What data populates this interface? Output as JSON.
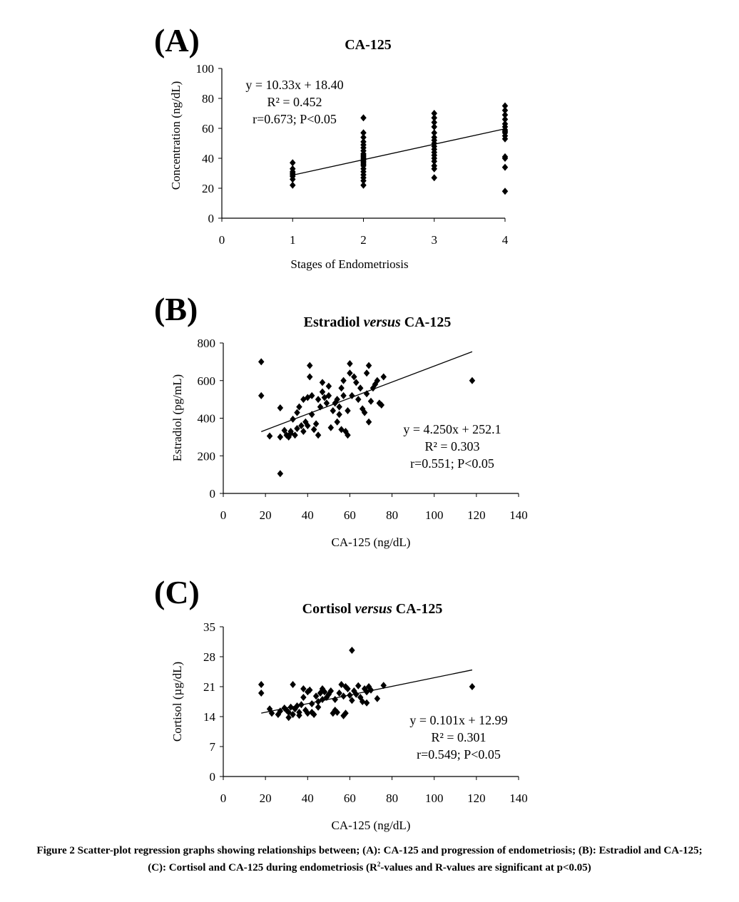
{
  "chart_data": [
    {
      "type": "scatter",
      "panel": "(A)",
      "title": "CA-125",
      "xlabel": "Stages of Endometriosis",
      "ylabel": "Concentration (ng/dL)",
      "xlim": [
        0,
        4
      ],
      "ylim": [
        0,
        100
      ],
      "xticks": [
        0,
        1,
        2,
        3,
        4
      ],
      "yticks": [
        0,
        20,
        40,
        60,
        80,
        100
      ],
      "trendline": {
        "slope": 10.33,
        "intercept": 18.4,
        "x_range": [
          1,
          4
        ]
      },
      "annotation": [
        "y = 10.33x + 18.40",
        "R² = 0.452",
        "r=0.673; P<0.05"
      ],
      "points": [
        [
          1,
          37
        ],
        [
          1,
          33
        ],
        [
          1,
          31
        ],
        [
          1,
          30
        ],
        [
          1,
          29
        ],
        [
          1,
          28
        ],
        [
          1,
          26
        ],
        [
          1,
          22
        ],
        [
          2,
          67
        ],
        [
          2,
          57
        ],
        [
          2,
          54
        ],
        [
          2,
          51
        ],
        [
          2,
          49
        ],
        [
          2,
          47
        ],
        [
          2,
          45
        ],
        [
          2,
          43
        ],
        [
          2,
          42
        ],
        [
          2,
          41
        ],
        [
          2,
          40
        ],
        [
          2,
          39
        ],
        [
          2,
          38
        ],
        [
          2,
          37
        ],
        [
          2,
          36
        ],
        [
          2,
          35
        ],
        [
          2,
          33
        ],
        [
          2,
          31
        ],
        [
          2,
          29
        ],
        [
          2,
          27
        ],
        [
          2,
          25
        ],
        [
          2,
          22
        ],
        [
          3,
          70
        ],
        [
          3,
          67
        ],
        [
          3,
          64
        ],
        [
          3,
          61
        ],
        [
          3,
          57
        ],
        [
          3,
          54
        ],
        [
          3,
          52
        ],
        [
          3,
          50
        ],
        [
          3,
          48
        ],
        [
          3,
          46
        ],
        [
          3,
          44
        ],
        [
          3,
          42
        ],
        [
          3,
          40
        ],
        [
          3,
          38
        ],
        [
          3,
          35
        ],
        [
          3,
          33
        ],
        [
          3,
          27
        ],
        [
          4,
          75
        ],
        [
          4,
          72
        ],
        [
          4,
          69
        ],
        [
          4,
          66
        ],
        [
          4,
          63
        ],
        [
          4,
          61
        ],
        [
          4,
          59
        ],
        [
          4,
          58
        ],
        [
          4,
          57
        ],
        [
          4,
          55
        ],
        [
          4,
          53
        ],
        [
          4,
          41
        ],
        [
          4,
          40
        ],
        [
          4,
          34
        ],
        [
          4,
          18
        ]
      ]
    },
    {
      "type": "scatter",
      "panel": "(B)",
      "title": "Estradiol",
      "title_italic": "versus",
      "title_tail": "CA-125",
      "xlabel": "CA-125 (ng/dL)",
      "ylabel": "Estradiol (pg/mL)",
      "xlim": [
        0,
        140
      ],
      "ylim": [
        0,
        800
      ],
      "xticks": [
        0,
        20,
        40,
        60,
        80,
        100,
        120,
        140
      ],
      "yticks": [
        0,
        200,
        400,
        600,
        800
      ],
      "trendline": {
        "slope": 4.25,
        "intercept": 252.1,
        "x_range": [
          18,
          118
        ]
      },
      "annotation": [
        "y = 4.250x + 252.1",
        "R² = 0.303",
        "r=0.551; P<0.05"
      ],
      "points": [
        [
          18,
          700
        ],
        [
          18,
          520
        ],
        [
          22,
          305
        ],
        [
          27,
          105
        ],
        [
          27,
          300
        ],
        [
          27,
          455
        ],
        [
          29,
          335
        ],
        [
          30,
          310
        ],
        [
          31,
          300
        ],
        [
          32,
          320
        ],
        [
          32,
          330
        ],
        [
          33,
          395
        ],
        [
          34,
          310
        ],
        [
          35,
          345
        ],
        [
          35,
          430
        ],
        [
          36,
          460
        ],
        [
          37,
          360
        ],
        [
          38,
          330
        ],
        [
          38,
          500
        ],
        [
          39,
          380
        ],
        [
          40,
          510
        ],
        [
          40,
          360
        ],
        [
          41,
          680
        ],
        [
          41,
          620
        ],
        [
          42,
          520
        ],
        [
          42,
          420
        ],
        [
          43,
          340
        ],
        [
          44,
          370
        ],
        [
          45,
          310
        ],
        [
          45,
          500
        ],
        [
          46,
          460
        ],
        [
          47,
          590
        ],
        [
          47,
          540
        ],
        [
          48,
          510
        ],
        [
          49,
          480
        ],
        [
          50,
          520
        ],
        [
          50,
          570
        ],
        [
          51,
          350
        ],
        [
          52,
          440
        ],
        [
          53,
          480
        ],
        [
          54,
          500
        ],
        [
          54,
          380
        ],
        [
          55,
          420
        ],
        [
          55,
          460
        ],
        [
          56,
          340
        ],
        [
          56,
          560
        ],
        [
          57,
          520
        ],
        [
          57,
          600
        ],
        [
          58,
          330
        ],
        [
          59,
          310
        ],
        [
          59,
          440
        ],
        [
          60,
          640
        ],
        [
          60,
          690
        ],
        [
          61,
          520
        ],
        [
          62,
          620
        ],
        [
          63,
          590
        ],
        [
          64,
          500
        ],
        [
          65,
          560
        ],
        [
          66,
          450
        ],
        [
          67,
          430
        ],
        [
          68,
          530
        ],
        [
          68,
          640
        ],
        [
          69,
          380
        ],
        [
          69,
          680
        ],
        [
          70,
          490
        ],
        [
          71,
          560
        ],
        [
          72,
          580
        ],
        [
          73,
          600
        ],
        [
          74,
          480
        ],
        [
          75,
          470
        ],
        [
          76,
          620
        ],
        [
          118,
          600
        ]
      ]
    },
    {
      "type": "scatter",
      "panel": "(C)",
      "title": "Cortisol",
      "title_italic": "versus",
      "title_tail": "CA-125",
      "xlabel": "CA-125 (ng/dL)",
      "ylabel": "Cortisol (µg/dL)",
      "xlim": [
        0,
        140
      ],
      "ylim": [
        0,
        35
      ],
      "xticks": [
        0,
        20,
        40,
        60,
        80,
        100,
        120,
        140
      ],
      "yticks": [
        0,
        7,
        14,
        21,
        28,
        35
      ],
      "trendline": {
        "slope": 0.101,
        "intercept": 12.99,
        "x_range": [
          18,
          118
        ]
      },
      "annotation": [
        "y = 0.101x + 12.99",
        "R² = 0.301",
        "r=0.549; P<0.05"
      ],
      "points": [
        [
          18,
          21.5
        ],
        [
          18,
          19.5
        ],
        [
          22,
          15.8
        ],
        [
          23,
          14.8
        ],
        [
          26,
          14.5
        ],
        [
          27,
          15.3
        ],
        [
          29,
          16
        ],
        [
          30,
          15.5
        ],
        [
          31,
          13.8
        ],
        [
          31,
          15
        ],
        [
          32,
          16.2
        ],
        [
          33,
          14.5
        ],
        [
          33,
          21.5
        ],
        [
          34,
          15.8
        ],
        [
          35,
          16.5
        ],
        [
          36,
          15
        ],
        [
          36,
          14.3
        ],
        [
          37,
          16.8
        ],
        [
          38,
          18.5
        ],
        [
          38,
          20.5
        ],
        [
          39,
          15.5
        ],
        [
          40,
          19.8
        ],
        [
          40,
          14.8
        ],
        [
          41,
          20.2
        ],
        [
          42,
          15
        ],
        [
          42,
          17
        ],
        [
          43,
          14.5
        ],
        [
          44,
          18.8
        ],
        [
          45,
          17.5
        ],
        [
          45,
          16.2
        ],
        [
          46,
          19.5
        ],
        [
          47,
          18
        ],
        [
          47,
          20.5
        ],
        [
          48,
          19.8
        ],
        [
          49,
          18.5
        ],
        [
          50,
          19.2
        ],
        [
          51,
          20
        ],
        [
          52,
          14.8
        ],
        [
          53,
          15.5
        ],
        [
          53,
          18
        ],
        [
          54,
          15
        ],
        [
          55,
          19.5
        ],
        [
          56,
          21.5
        ],
        [
          57,
          14.2
        ],
        [
          57,
          18.8
        ],
        [
          58,
          21
        ],
        [
          58,
          14.8
        ],
        [
          59,
          20.5
        ],
        [
          60,
          19
        ],
        [
          61,
          17.8
        ],
        [
          61,
          29.5
        ],
        [
          62,
          20
        ],
        [
          63,
          19.2
        ],
        [
          64,
          21.2
        ],
        [
          65,
          18.5
        ],
        [
          66,
          17.5
        ],
        [
          67,
          20.5
        ],
        [
          68,
          19.8
        ],
        [
          68,
          17.2
        ],
        [
          69,
          21
        ],
        [
          70,
          20.2
        ],
        [
          73,
          18.2
        ],
        [
          76,
          21.3
        ],
        [
          118,
          21
        ]
      ]
    }
  ],
  "caption": {
    "lead": "Figure 2 Scatter-plot regression graphs showing relationships between; (A): CA-125 and progression of endometriosis; (B): Estradiol and CA-125; (C): Cortisol and CA-125 during endometriosis (R",
    "sup": "2",
    "tail": "-values and R-values are significant at p<0.05)"
  }
}
